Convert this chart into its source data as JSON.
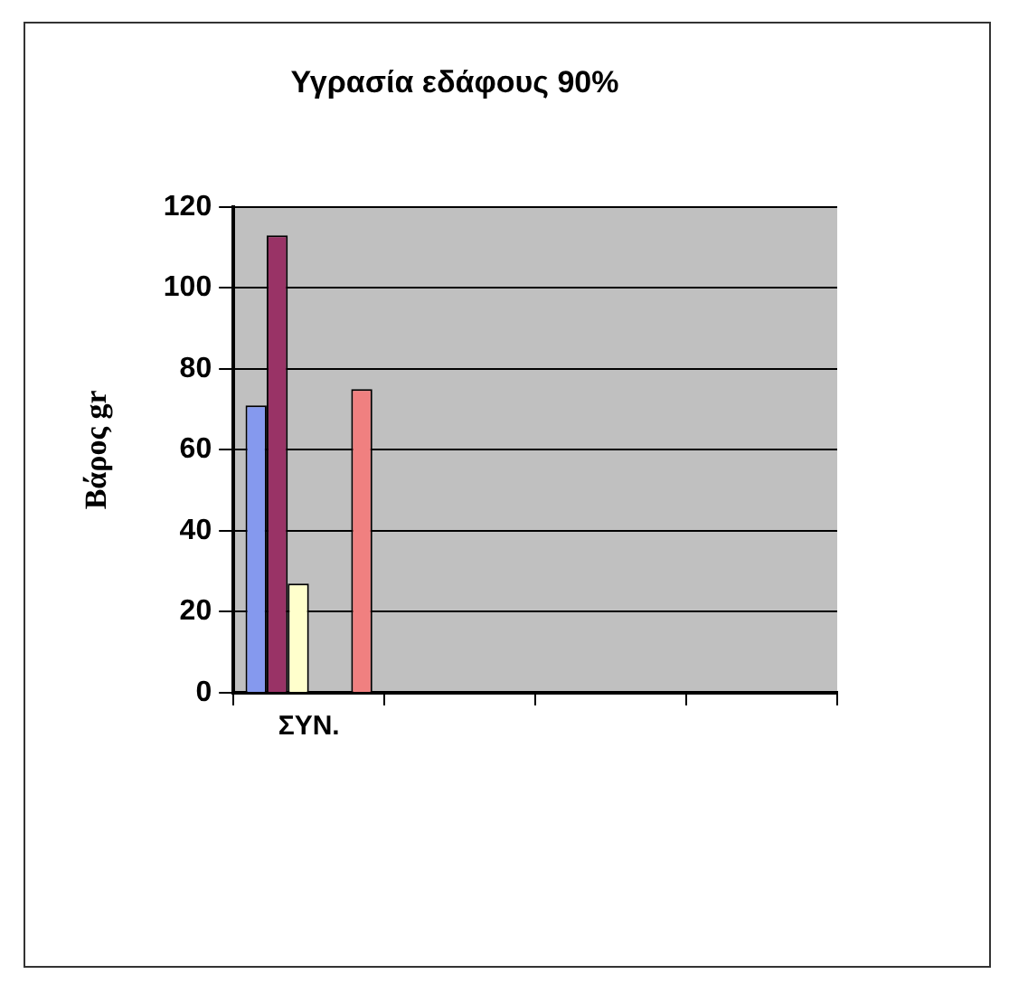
{
  "chart_data": {
    "type": "bar",
    "title": "Υγρασία εδάφους 90%",
    "ylabel": "Βάρος gr",
    "categories": [
      "ΣΥΝ.",
      null,
      null,
      null
    ],
    "series": [
      {
        "color": "#8599ee",
        "values": [
          71,
          null,
          null,
          null
        ]
      },
      {
        "color": "#993366",
        "values": [
          113,
          null,
          null,
          null
        ]
      },
      {
        "color": "#ffffcc",
        "values": [
          27,
          null,
          null,
          null
        ]
      },
      {
        "values": [
          null,
          null,
          null,
          null
        ]
      },
      {
        "values": [
          null,
          null,
          null,
          null
        ]
      },
      {
        "color": "#f08080",
        "values": [
          75,
          null,
          null,
          null
        ]
      }
    ],
    "ylim": [
      0,
      120
    ],
    "yticks": [
      0,
      20,
      40,
      60,
      80,
      100,
      120
    ],
    "grid": "y",
    "legend": false
  }
}
